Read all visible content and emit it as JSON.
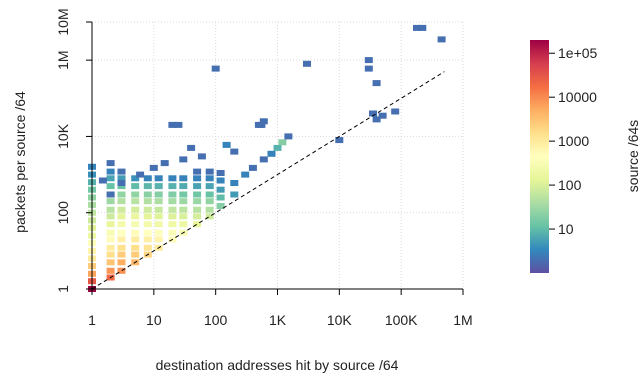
{
  "chart_data": {
    "type": "heatmap",
    "title": "",
    "xlabel": "destination addresses hit by source /64",
    "ylabel": "packets per source /64",
    "x_scale": "log10",
    "y_scale": "log10",
    "xlim": [
      1,
      1000000
    ],
    "ylim": [
      1,
      10000000
    ],
    "x_ticks": [
      1,
      10,
      100,
      1000,
      10000,
      100000,
      1000000
    ],
    "x_tick_labels": [
      "1",
      "10",
      "100",
      "1K",
      "10K",
      "100K",
      "1M"
    ],
    "y_ticks": [
      1,
      100,
      10000,
      1000000,
      10000000
    ],
    "y_tick_labels": [
      "1",
      "100",
      "10K",
      "1M",
      "10M"
    ],
    "grid": true,
    "reference_line": {
      "description": "y = x",
      "x": [
        1,
        500000
      ],
      "y": [
        1,
        500000
      ],
      "style": "dashed"
    },
    "colorbar": {
      "label": "source /64s",
      "scale": "log10",
      "range": [
        1,
        200000
      ],
      "ticks": [
        10,
        100,
        1000,
        10000,
        100000
      ],
      "tick_labels": [
        "10",
        "100",
        "1000",
        "10000",
        "1e+05"
      ]
    },
    "cells": [
      [
        1,
        1,
        200000
      ],
      [
        1,
        1.6,
        30000
      ],
      [
        1,
        2.5,
        6000
      ],
      [
        1,
        4,
        2500
      ],
      [
        1,
        6.3,
        1000
      ],
      [
        1,
        10,
        700
      ],
      [
        1,
        16,
        400
      ],
      [
        1,
        25,
        200
      ],
      [
        1,
        40,
        120
      ],
      [
        1,
        63,
        80
      ],
      [
        1,
        100,
        60
      ],
      [
        1,
        160,
        40
      ],
      [
        1,
        250,
        25
      ],
      [
        1,
        400,
        15
      ],
      [
        1,
        630,
        8
      ],
      [
        1,
        1000,
        4
      ],
      [
        1,
        1600,
        3
      ],
      [
        2,
        2,
        20000
      ],
      [
        2,
        3,
        8000
      ],
      [
        2,
        5,
        3000
      ],
      [
        2,
        8,
        1500
      ],
      [
        2,
        12,
        900
      ],
      [
        2,
        20,
        500
      ],
      [
        2,
        30,
        300
      ],
      [
        2,
        50,
        150
      ],
      [
        2,
        80,
        80
      ],
      [
        2,
        120,
        50
      ],
      [
        2,
        200,
        30
      ],
      [
        2,
        300,
        20
      ],
      [
        2,
        500,
        12
      ],
      [
        2,
        800,
        6
      ],
      [
        2,
        1200,
        3
      ],
      [
        2,
        2000,
        2
      ],
      [
        3,
        3,
        9000
      ],
      [
        3,
        5,
        5000
      ],
      [
        3,
        8,
        2500
      ],
      [
        3,
        12,
        1400
      ],
      [
        3,
        20,
        800
      ],
      [
        3,
        30,
        450
      ],
      [
        3,
        50,
        250
      ],
      [
        3,
        80,
        140
      ],
      [
        3,
        120,
        80
      ],
      [
        3,
        200,
        45
      ],
      [
        3,
        300,
        25
      ],
      [
        3,
        500,
        12
      ],
      [
        3,
        800,
        5
      ],
      [
        3,
        1200,
        2
      ],
      [
        5,
        5,
        4000
      ],
      [
        5,
        8,
        2500
      ],
      [
        5,
        12,
        1500
      ],
      [
        5,
        20,
        900
      ],
      [
        5,
        30,
        500
      ],
      [
        5,
        50,
        280
      ],
      [
        5,
        80,
        160
      ],
      [
        5,
        120,
        90
      ],
      [
        5,
        200,
        50
      ],
      [
        5,
        300,
        25
      ],
      [
        5,
        500,
        10
      ],
      [
        5,
        800,
        4
      ],
      [
        8,
        8,
        2000
      ],
      [
        8,
        12,
        1300
      ],
      [
        8,
        20,
        800
      ],
      [
        8,
        30,
        450
      ],
      [
        8,
        50,
        250
      ],
      [
        8,
        80,
        140
      ],
      [
        8,
        120,
        80
      ],
      [
        8,
        200,
        45
      ],
      [
        8,
        300,
        22
      ],
      [
        8,
        500,
        9
      ],
      [
        8,
        800,
        3
      ],
      [
        12,
        12,
        1000
      ],
      [
        12,
        20,
        700
      ],
      [
        12,
        30,
        400
      ],
      [
        12,
        50,
        220
      ],
      [
        12,
        80,
        120
      ],
      [
        12,
        120,
        70
      ],
      [
        12,
        200,
        40
      ],
      [
        12,
        300,
        20
      ],
      [
        12,
        500,
        8
      ],
      [
        12,
        800,
        3
      ],
      [
        20,
        20,
        500
      ],
      [
        20,
        30,
        350
      ],
      [
        20,
        50,
        200
      ],
      [
        20,
        80,
        110
      ],
      [
        20,
        120,
        60
      ],
      [
        20,
        200,
        35
      ],
      [
        20,
        300,
        18
      ],
      [
        20,
        500,
        8
      ],
      [
        20,
        800,
        3
      ],
      [
        30,
        30,
        300
      ],
      [
        30,
        50,
        180
      ],
      [
        30,
        80,
        100
      ],
      [
        30,
        120,
        55
      ],
      [
        30,
        200,
        30
      ],
      [
        30,
        300,
        15
      ],
      [
        30,
        500,
        7
      ],
      [
        30,
        800,
        3
      ],
      [
        50,
        50,
        150
      ],
      [
        50,
        80,
        90
      ],
      [
        50,
        120,
        50
      ],
      [
        50,
        200,
        28
      ],
      [
        50,
        300,
        14
      ],
      [
        50,
        500,
        6
      ],
      [
        50,
        800,
        3
      ],
      [
        50,
        1200,
        2
      ],
      [
        80,
        80,
        80
      ],
      [
        80,
        120,
        45
      ],
      [
        80,
        200,
        25
      ],
      [
        80,
        300,
        12
      ],
      [
        80,
        500,
        6
      ],
      [
        80,
        800,
        3
      ],
      [
        80,
        1200,
        2
      ],
      [
        120,
        150,
        20
      ],
      [
        120,
        250,
        10
      ],
      [
        120,
        400,
        5
      ],
      [
        120,
        700,
        3
      ],
      [
        120,
        1100,
        2
      ],
      [
        200,
        300,
        5
      ],
      [
        200,
        600,
        3
      ],
      [
        300,
        1000,
        3
      ],
      [
        400,
        1500,
        2
      ],
      [
        600,
        2500,
        2
      ],
      [
        800,
        3500,
        3
      ],
      [
        1000,
        5000,
        8
      ],
      [
        1200,
        7000,
        20
      ],
      [
        1500,
        10000,
        2
      ],
      [
        2,
        300,
        2
      ],
      [
        3,
        600,
        2
      ],
      [
        6,
        1000,
        2
      ],
      [
        10,
        1500,
        2
      ],
      [
        15,
        2000,
        2
      ],
      [
        30,
        2500,
        2
      ],
      [
        40,
        5000,
        2
      ],
      [
        60,
        3000,
        2
      ],
      [
        150,
        6000,
        3
      ],
      [
        200,
        4000,
        2
      ],
      [
        1.5,
        700,
        2
      ],
      [
        20,
        20000,
        2
      ],
      [
        25,
        20000,
        2
      ],
      [
        500,
        20000,
        2
      ],
      [
        550,
        20000,
        2
      ],
      [
        600,
        25000,
        2
      ],
      [
        100,
        600000,
        2
      ],
      [
        3000,
        800000,
        2
      ],
      [
        30000,
        1000000,
        2
      ],
      [
        30000,
        600000,
        2
      ],
      [
        40000,
        250000,
        2
      ],
      [
        35000,
        40000,
        2
      ],
      [
        40000,
        28000,
        2
      ],
      [
        50000,
        35000,
        2
      ],
      [
        80000,
        45000,
        2
      ],
      [
        10000,
        8000,
        2
      ],
      [
        180000,
        7000000,
        2
      ],
      [
        220000,
        7000000,
        2
      ],
      [
        450000,
        3500000,
        2
      ]
    ]
  }
}
